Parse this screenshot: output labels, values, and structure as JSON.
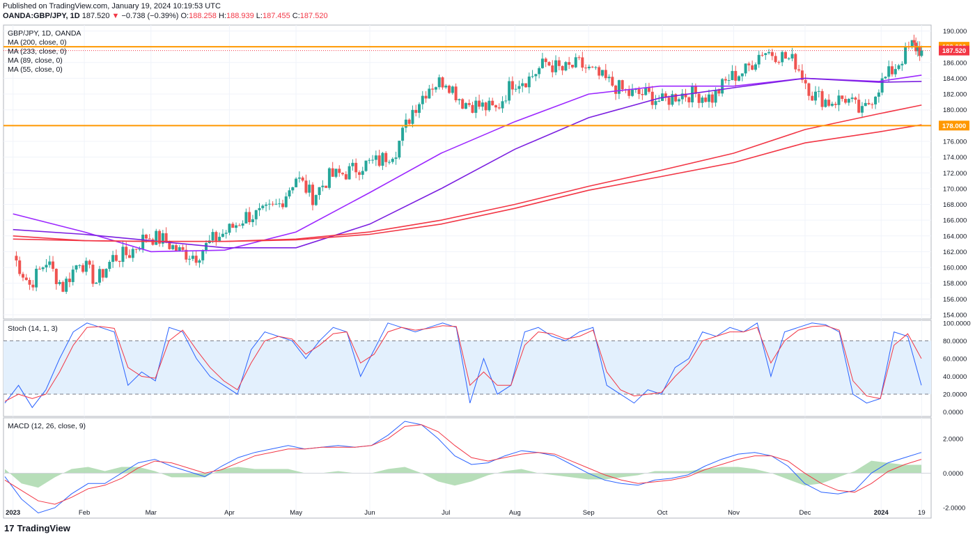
{
  "header": {
    "published": "Published on TradingView.com, January 19, 2024 10:19:53 UTC",
    "symbol": "OANDA:GBP/JPY, 1D",
    "last": "187.520",
    "change_arrow": "▼",
    "change": "−0.738 (−0.39%)",
    "o_label": "O:",
    "o": "188.258",
    "h_label": "H:",
    "h": "188.939",
    "l_label": "L:",
    "l": "187.455",
    "c_label": "C:",
    "c": "187.520"
  },
  "legend": {
    "title": "GBP/JPY, 1D, OANDA",
    "ma200": "MA (200, close, 0)",
    "ma233": "MA (233, close, 0)",
    "ma89": "MA (89, close, 0)",
    "ma55": "MA (55, close, 0)",
    "stoch": "Stoch (14, 1, 3)",
    "macd": "MACD (12, 26, close, 9)"
  },
  "brand": {
    "logo": "17",
    "name": "TradingView"
  },
  "colors": {
    "up": "#26a69a",
    "down": "#ef5350",
    "ma_red": "#f23645",
    "ma_purple": "#9c27ff",
    "ma_violet": "#7b1fe0",
    "level": "#ff9800",
    "stoch_k": "#2962ff",
    "stoch_d": "#f23645",
    "stoch_fill": "#e3f0fd",
    "macd_line": "#2962ff",
    "signal_line": "#f23645",
    "hist": "#a5d6a7"
  },
  "chart_data": {
    "type": "candlestick",
    "symbol": "GBP/JPY",
    "timeframe": "1D",
    "x_ticks": [
      "2023",
      "Feb",
      "Mar",
      "Apr",
      "May",
      "Jun",
      "Jul",
      "Aug",
      "Sep",
      "Oct",
      "Nov",
      "Dec",
      "2024",
      "19"
    ],
    "price_axis": {
      "ticks": [
        "190.000",
        "188.000",
        "186.000",
        "184.000",
        "182.000",
        "180.000",
        "178.000",
        "176.000",
        "174.000",
        "172.000",
        "170.000",
        "168.000",
        "166.000",
        "164.000",
        "162.000",
        "160.000",
        "158.000",
        "156.000",
        "154.000"
      ],
      "ylim": [
        154,
        190
      ]
    },
    "horizontal_levels": [
      {
        "value": 188.0,
        "label": "188.000"
      },
      {
        "value": 178.0,
        "label": "178.000"
      }
    ],
    "last_price": {
      "value": 187.52,
      "label": "187.520"
    },
    "close_path": [
      {
        "date": "2023-01-02",
        "close": 161.5
      },
      {
        "date": "2023-01-09",
        "close": 157.8
      },
      {
        "date": "2023-01-16",
        "close": 160.8
      },
      {
        "date": "2023-01-23",
        "close": 157.5
      },
      {
        "date": "2023-01-30",
        "close": 161.0
      },
      {
        "date": "2023-02-06",
        "close": 158.2
      },
      {
        "date": "2023-02-13",
        "close": 161.2
      },
      {
        "date": "2023-02-20",
        "close": 161.8
      },
      {
        "date": "2023-02-27",
        "close": 164.0
      },
      {
        "date": "2023-03-06",
        "close": 163.5
      },
      {
        "date": "2023-03-13",
        "close": 162.0
      },
      {
        "date": "2023-03-20",
        "close": 161.5
      },
      {
        "date": "2023-03-27",
        "close": 163.5
      },
      {
        "date": "2023-04-03",
        "close": 164.8
      },
      {
        "date": "2023-04-10",
        "close": 166.5
      },
      {
        "date": "2023-04-17",
        "close": 166.8
      },
      {
        "date": "2023-04-24",
        "close": 168.0
      },
      {
        "date": "2023-05-01",
        "close": 171.5
      },
      {
        "date": "2023-05-08",
        "close": 169.0
      },
      {
        "date": "2023-05-15",
        "close": 171.5
      },
      {
        "date": "2023-05-22",
        "close": 172.0
      },
      {
        "date": "2023-05-29",
        "close": 173.0
      },
      {
        "date": "2023-06-05",
        "close": 173.5
      },
      {
        "date": "2023-06-12",
        "close": 175.0
      },
      {
        "date": "2023-06-19",
        "close": 180.0
      },
      {
        "date": "2023-06-26",
        "close": 183.0
      },
      {
        "date": "2023-07-03",
        "close": 183.8
      },
      {
        "date": "2023-07-10",
        "close": 181.0
      },
      {
        "date": "2023-07-17",
        "close": 180.5
      },
      {
        "date": "2023-07-24",
        "close": 180.0
      },
      {
        "date": "2023-07-31",
        "close": 183.5
      },
      {
        "date": "2023-08-07",
        "close": 184.0
      },
      {
        "date": "2023-08-14",
        "close": 186.0
      },
      {
        "date": "2023-08-21",
        "close": 185.0
      },
      {
        "date": "2023-08-28",
        "close": 185.8
      },
      {
        "date": "2023-09-04",
        "close": 184.5
      },
      {
        "date": "2023-09-11",
        "close": 183.2
      },
      {
        "date": "2023-09-18",
        "close": 182.0
      },
      {
        "date": "2023-09-25",
        "close": 182.0
      },
      {
        "date": "2023-10-02",
        "close": 181.0
      },
      {
        "date": "2023-10-09",
        "close": 182.0
      },
      {
        "date": "2023-10-16",
        "close": 182.0
      },
      {
        "date": "2023-10-23",
        "close": 181.5
      },
      {
        "date": "2023-10-30",
        "close": 184.0
      },
      {
        "date": "2023-11-06",
        "close": 185.0
      },
      {
        "date": "2023-11-13",
        "close": 187.5
      },
      {
        "date": "2023-11-20",
        "close": 187.0
      },
      {
        "date": "2023-11-27",
        "close": 186.0
      },
      {
        "date": "2023-12-04",
        "close": 182.0
      },
      {
        "date": "2023-12-11",
        "close": 181.0
      },
      {
        "date": "2023-12-18",
        "close": 181.5
      },
      {
        "date": "2023-12-25",
        "close": 179.5
      },
      {
        "date": "2024-01-01",
        "close": 183.0
      },
      {
        "date": "2024-01-08",
        "close": 185.5
      },
      {
        "date": "2024-01-15",
        "close": 188.2
      },
      {
        "date": "2024-01-19",
        "close": 187.52
      }
    ],
    "moving_averages": [
      {
        "name": "MA (55, close, 0)",
        "points": [
          [
            "2023-01-02",
            166.8
          ],
          [
            "2023-02-01",
            164.5
          ],
          [
            "2023-03-01",
            162.0
          ],
          [
            "2023-04-01",
            162.2
          ],
          [
            "2023-05-01",
            164.5
          ],
          [
            "2023-06-01",
            169.5
          ],
          [
            "2023-07-01",
            174.5
          ],
          [
            "2023-08-01",
            178.5
          ],
          [
            "2023-09-01",
            182.0
          ],
          [
            "2023-10-01",
            183.0
          ],
          [
            "2023-11-01",
            183.0
          ],
          [
            "2023-12-01",
            184.0
          ],
          [
            "2024-01-01",
            183.6
          ],
          [
            "2024-01-19",
            184.4
          ]
        ]
      },
      {
        "name": "MA (89, close, 0)",
        "points": [
          [
            "2023-01-02",
            164.8
          ],
          [
            "2023-02-01",
            164.2
          ],
          [
            "2023-03-01",
            163.4
          ],
          [
            "2023-04-01",
            162.5
          ],
          [
            "2023-05-01",
            162.5
          ],
          [
            "2023-06-01",
            165.5
          ],
          [
            "2023-07-01",
            170.0
          ],
          [
            "2023-08-01",
            175.0
          ],
          [
            "2023-09-01",
            179.0
          ],
          [
            "2023-10-01",
            181.5
          ],
          [
            "2023-11-01",
            182.8
          ],
          [
            "2023-12-01",
            184.0
          ],
          [
            "2024-01-01",
            183.5
          ],
          [
            "2024-01-19",
            183.6
          ]
        ]
      },
      {
        "name": "MA (200, close, 0)",
        "points": [
          [
            "2023-01-02",
            163.6
          ],
          [
            "2023-02-01",
            163.4
          ],
          [
            "2023-03-01",
            163.3
          ],
          [
            "2023-04-01",
            163.3
          ],
          [
            "2023-05-01",
            163.6
          ],
          [
            "2023-06-01",
            164.5
          ],
          [
            "2023-07-01",
            166.0
          ],
          [
            "2023-08-01",
            168.0
          ],
          [
            "2023-09-01",
            170.3
          ],
          [
            "2023-10-01",
            172.3
          ],
          [
            "2023-11-01",
            174.5
          ],
          [
            "2023-12-01",
            177.5
          ],
          [
            "2024-01-01",
            179.5
          ],
          [
            "2024-01-19",
            180.6
          ]
        ]
      },
      {
        "name": "MA (233, close, 0)",
        "points": [
          [
            "2023-01-02",
            164.0
          ],
          [
            "2023-02-01",
            163.4
          ],
          [
            "2023-03-01",
            163.3
          ],
          [
            "2023-04-01",
            163.3
          ],
          [
            "2023-05-01",
            163.5
          ],
          [
            "2023-06-01",
            164.2
          ],
          [
            "2023-07-01",
            165.5
          ],
          [
            "2023-08-01",
            167.5
          ],
          [
            "2023-09-01",
            169.8
          ],
          [
            "2023-10-01",
            171.5
          ],
          [
            "2023-11-01",
            173.3
          ],
          [
            "2023-12-01",
            175.8
          ],
          [
            "2024-01-01",
            177.2
          ],
          [
            "2024-01-19",
            178.1
          ]
        ]
      }
    ],
    "stochastic": {
      "name": "Stoch (14, 1, 3)",
      "ticks": [
        "100.0000",
        "80.0000",
        "60.0000",
        "40.0000",
        "20.0000",
        "0.0000"
      ],
      "ylim": [
        -5,
        103
      ],
      "bands": [
        80,
        20
      ],
      "k": [
        10,
        30,
        5,
        25,
        60,
        90,
        100,
        95,
        90,
        30,
        45,
        35,
        95,
        90,
        60,
        40,
        30,
        20,
        70,
        90,
        85,
        80,
        60,
        80,
        95,
        90,
        40,
        70,
        100,
        95,
        90,
        95,
        100,
        95,
        10,
        60,
        20,
        30,
        90,
        95,
        85,
        80,
        90,
        95,
        30,
        20,
        10,
        25,
        20,
        50,
        60,
        90,
        85,
        95,
        90,
        100,
        40,
        90,
        95,
        100,
        98,
        90,
        20,
        10,
        15,
        90,
        85,
        30
      ],
      "d": [
        12,
        20,
        15,
        20,
        45,
        75,
        95,
        96,
        94,
        50,
        40,
        38,
        80,
        92,
        70,
        50,
        35,
        25,
        55,
        80,
        85,
        82,
        65,
        75,
        88,
        90,
        55,
        65,
        90,
        95,
        92,
        94,
        97,
        96,
        30,
        45,
        30,
        30,
        75,
        90,
        88,
        82,
        85,
        92,
        45,
        25,
        18,
        20,
        22,
        40,
        55,
        80,
        85,
        90,
        90,
        95,
        55,
        80,
        92,
        96,
        97,
        92,
        35,
        18,
        15,
        75,
        88,
        60
      ]
    },
    "macd": {
      "name": "MACD (12, 26, close, 9)",
      "ticks": [
        "2.0000",
        "0.0000",
        "-2.0000"
      ],
      "ylim": [
        -2.6,
        3.2
      ],
      "macd_line": [
        -0.2,
        -1.5,
        -2.3,
        -2.0,
        -1.2,
        -0.6,
        -0.6,
        0.0,
        0.6,
        0.8,
        0.4,
        0.1,
        -0.2,
        0.4,
        0.9,
        1.2,
        1.4,
        1.6,
        1.4,
        1.5,
        1.6,
        1.5,
        1.6,
        2.2,
        3.0,
        2.8,
        2.0,
        1.0,
        0.5,
        0.6,
        1.0,
        1.3,
        1.2,
        1.0,
        0.5,
        0.0,
        -0.4,
        -0.6,
        -0.7,
        -0.4,
        -0.3,
        -0.1,
        0.4,
        0.8,
        1.1,
        1.2,
        1.0,
        0.4,
        -0.6,
        -1.1,
        -1.2,
        -1.0,
        0.0,
        0.6,
        0.9,
        1.2
      ],
      "signal_line": [
        -0.4,
        -1.0,
        -1.6,
        -1.8,
        -1.4,
        -0.9,
        -0.7,
        -0.3,
        0.3,
        0.7,
        0.6,
        0.3,
        0.0,
        0.2,
        0.6,
        1.0,
        1.2,
        1.4,
        1.4,
        1.5,
        1.5,
        1.5,
        1.6,
        2.0,
        2.7,
        2.8,
        2.4,
        1.6,
        0.9,
        0.7,
        0.9,
        1.1,
        1.2,
        1.1,
        0.7,
        0.3,
        -0.1,
        -0.4,
        -0.6,
        -0.5,
        -0.4,
        -0.2,
        0.2,
        0.5,
        0.8,
        1.0,
        1.0,
        0.7,
        0.0,
        -0.6,
        -1.0,
        -1.1,
        -0.6,
        0.1,
        0.5,
        0.8
      ]
    }
  }
}
